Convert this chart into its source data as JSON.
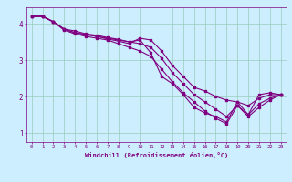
{
  "xlabel": "Windchill (Refroidissement éolien,°C)",
  "bg_color": "#cceeff",
  "line_color": "#800080",
  "grid_color": "#99ccbb",
  "xlim": [
    -0.5,
    23.5
  ],
  "ylim": [
    0.75,
    4.45
  ],
  "yticks": [
    1,
    2,
    3,
    4
  ],
  "xticks": [
    0,
    1,
    2,
    3,
    4,
    5,
    6,
    7,
    8,
    9,
    10,
    11,
    12,
    13,
    14,
    15,
    16,
    17,
    18,
    19,
    20,
    21,
    22,
    23
  ],
  "series": [
    [
      4.2,
      4.2,
      4.05,
      3.85,
      3.75,
      3.7,
      3.65,
      3.6,
      3.55,
      3.5,
      3.55,
      3.2,
      2.55,
      2.35,
      2.05,
      1.7,
      1.55,
      1.45,
      1.3,
      1.85,
      1.5,
      2.05,
      2.1,
      2.05
    ],
    [
      4.2,
      4.2,
      4.05,
      3.85,
      3.75,
      3.7,
      3.65,
      3.58,
      3.52,
      3.45,
      3.6,
      3.55,
      3.25,
      2.85,
      2.55,
      2.25,
      2.15,
      2.0,
      1.9,
      1.85,
      1.75,
      1.95,
      2.05,
      2.05
    ],
    [
      4.2,
      4.2,
      4.05,
      3.85,
      3.8,
      3.72,
      3.68,
      3.62,
      3.57,
      3.5,
      3.45,
      3.35,
      3.05,
      2.65,
      2.35,
      2.05,
      1.85,
      1.65,
      1.45,
      1.75,
      1.5,
      1.8,
      1.95,
      2.05
    ],
    [
      4.2,
      4.2,
      4.05,
      3.82,
      3.72,
      3.65,
      3.6,
      3.55,
      3.45,
      3.35,
      3.25,
      3.1,
      2.75,
      2.4,
      2.1,
      1.85,
      1.6,
      1.4,
      1.25,
      1.75,
      1.45,
      1.7,
      1.9,
      2.05
    ]
  ]
}
